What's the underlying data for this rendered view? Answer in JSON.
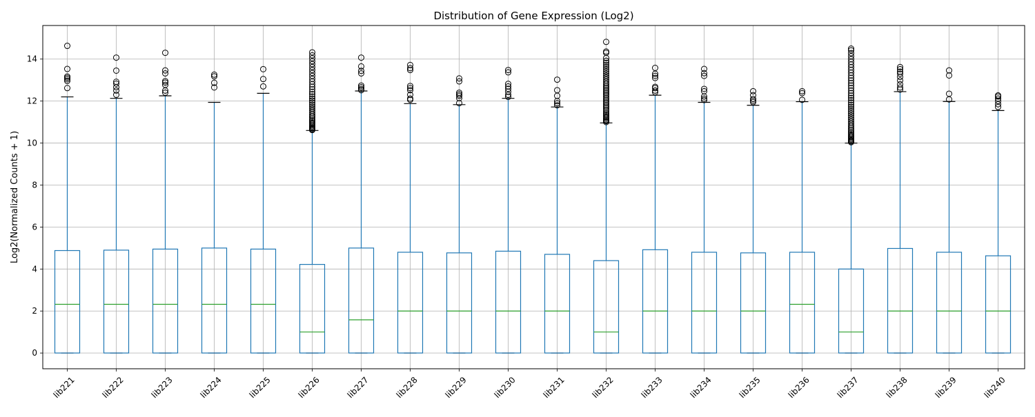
{
  "chart_data": {
    "type": "box",
    "title": "Distribution of Gene Expression (Log2)",
    "xlabel": "",
    "ylabel": "Log2(Normalized Counts + 1)",
    "ylim": [
      -0.75,
      15.6
    ],
    "yticks": [
      0,
      2,
      4,
      6,
      8,
      10,
      12,
      14
    ],
    "grid": true,
    "colors": {
      "box": "#1f77b4",
      "median": "#2ca02c",
      "whisker": "#1f77b4",
      "cap": "#000000",
      "outlier": "#000000",
      "grid": "#b0b0b0"
    },
    "categories": [
      "lib221",
      "lib222",
      "lib223",
      "lib224",
      "lib225",
      "lib226",
      "lib227",
      "lib228",
      "lib229",
      "lib230",
      "lib231",
      "lib232",
      "lib233",
      "lib234",
      "lib235",
      "lib236",
      "lib237",
      "lib238",
      "lib239",
      "lib240"
    ],
    "boxes": [
      {
        "label": "lib221",
        "whislo": 0,
        "q1": 0,
        "median": 2.32,
        "q3": 4.88,
        "whishi": 12.2,
        "fliers": [
          12.62,
          12.96,
          13.04,
          13.11,
          13.17,
          13.53,
          14.63
        ]
      },
      {
        "label": "lib222",
        "whislo": 0,
        "q1": 0,
        "median": 2.32,
        "q3": 4.9,
        "whishi": 12.13,
        "fliers": [
          12.3,
          12.5,
          12.66,
          12.83,
          12.92,
          13.45,
          14.07
        ]
      },
      {
        "label": "lib223",
        "whislo": 0,
        "q1": 0,
        "median": 2.32,
        "q3": 4.95,
        "whishi": 12.25,
        "fliers": [
          12.4,
          12.5,
          12.77,
          12.88,
          12.95,
          13.32,
          13.46,
          14.3
        ]
      },
      {
        "label": "lib224",
        "whislo": 0,
        "q1": 0,
        "median": 2.32,
        "q3": 5.0,
        "whishi": 11.94,
        "fliers": [
          12.65,
          12.87,
          13.18,
          13.26
        ]
      },
      {
        "label": "lib225",
        "whislo": 0,
        "q1": 0,
        "median": 2.32,
        "q3": 4.95,
        "whishi": 12.37,
        "fliers": [
          12.7,
          13.05,
          13.52
        ]
      },
      {
        "label": "lib226",
        "whislo": 0,
        "q1": 0,
        "median": 1.0,
        "q3": 4.22,
        "whishi": 10.6,
        "fliers": [
          10.62,
          10.66,
          10.7,
          10.75,
          10.8,
          10.86,
          10.92,
          10.98,
          11.05,
          11.12,
          11.2,
          11.28,
          11.36,
          11.45,
          11.54,
          11.63,
          11.72,
          11.82,
          11.92,
          12.02,
          12.12,
          12.22,
          12.33,
          12.44,
          12.56,
          12.68,
          12.8,
          12.93,
          13.06,
          13.2,
          13.34,
          13.48,
          13.62,
          13.76,
          13.9,
          14.04,
          14.18,
          14.32
        ]
      },
      {
        "label": "lib227",
        "whislo": 0,
        "q1": 0,
        "median": 1.58,
        "q3": 5.0,
        "whishi": 12.48,
        "fliers": [
          12.52,
          12.58,
          12.66,
          12.74,
          13.32,
          13.44,
          13.65,
          14.07
        ]
      },
      {
        "label": "lib228",
        "whislo": 0,
        "q1": 0,
        "median": 2.0,
        "q3": 4.8,
        "whishi": 11.88,
        "fliers": [
          12.06,
          12.12,
          12.3,
          12.52,
          12.62,
          12.72,
          13.48,
          13.57,
          13.72
        ]
      },
      {
        "label": "lib229",
        "whislo": 0,
        "q1": 0,
        "median": 2.0,
        "q3": 4.77,
        "whishi": 11.83,
        "fliers": [
          11.9,
          12.14,
          12.25,
          12.32,
          12.4,
          12.94,
          13.08
        ]
      },
      {
        "label": "lib230",
        "whislo": 0,
        "q1": 0,
        "median": 2.0,
        "q3": 4.85,
        "whishi": 12.13,
        "fliers": [
          12.2,
          12.3,
          12.45,
          12.58,
          12.7,
          12.82,
          13.37,
          13.48
        ]
      },
      {
        "label": "lib231",
        "whislo": 0,
        "q1": 0,
        "median": 2.0,
        "q3": 4.7,
        "whishi": 11.72,
        "fliers": [
          11.8,
          11.9,
          12.0,
          12.25,
          12.52,
          13.02
        ]
      },
      {
        "label": "lib232",
        "whislo": 0,
        "q1": 0,
        "median": 1.0,
        "q3": 4.4,
        "whishi": 10.96,
        "fliers": [
          11.0,
          11.05,
          11.1,
          11.16,
          11.22,
          11.28,
          11.35,
          11.42,
          11.5,
          11.58,
          11.66,
          11.74,
          11.82,
          11.9,
          11.98,
          12.06,
          12.14,
          12.22,
          12.3,
          12.38,
          12.46,
          12.54,
          12.62,
          12.7,
          12.78,
          12.86,
          12.95,
          13.04,
          13.13,
          13.22,
          13.32,
          13.42,
          13.52,
          13.62,
          13.72,
          13.82,
          13.92,
          14.05,
          14.3,
          14.36,
          14.82
        ]
      },
      {
        "label": "lib233",
        "whislo": 0,
        "q1": 0,
        "median": 2.0,
        "q3": 4.92,
        "whishi": 12.28,
        "fliers": [
          12.42,
          12.5,
          12.62,
          12.68,
          13.1,
          13.2,
          13.3,
          13.58
        ]
      },
      {
        "label": "lib234",
        "whislo": 0,
        "q1": 0,
        "median": 2.0,
        "q3": 4.8,
        "whishi": 11.94,
        "fliers": [
          12.05,
          12.12,
          12.22,
          12.47,
          12.58,
          13.2,
          13.33,
          13.53
        ]
      },
      {
        "label": "lib235",
        "whislo": 0,
        "q1": 0,
        "median": 2.0,
        "q3": 4.77,
        "whishi": 11.8,
        "fliers": [
          11.95,
          12.02,
          12.1,
          12.28,
          12.47
        ]
      },
      {
        "label": "lib236",
        "whislo": 0,
        "q1": 0,
        "median": 2.32,
        "q3": 4.8,
        "whishi": 11.97,
        "fliers": [
          12.06,
          12.38,
          12.47
        ]
      },
      {
        "label": "lib237",
        "whislo": 0,
        "q1": 0,
        "median": 1.0,
        "q3": 4.0,
        "whishi": 10.0,
        "fliers": [
          10.04,
          10.08,
          10.12,
          10.17,
          10.22,
          10.28,
          10.34,
          10.4,
          10.47,
          10.54,
          10.62,
          10.7,
          10.78,
          10.86,
          10.95,
          11.04,
          11.13,
          11.22,
          11.32,
          11.42,
          11.52,
          11.62,
          11.72,
          11.82,
          11.93,
          12.04,
          12.15,
          12.26,
          12.38,
          12.5,
          12.62,
          12.74,
          12.86,
          12.98,
          13.1,
          13.22,
          13.35,
          13.48,
          13.61,
          13.74,
          13.87,
          14.0,
          14.14,
          14.28,
          14.42,
          14.5
        ]
      },
      {
        "label": "lib238",
        "whislo": 0,
        "q1": 0,
        "median": 2.0,
        "q3": 4.98,
        "whishi": 12.45,
        "fliers": [
          12.55,
          12.65,
          12.8,
          12.98,
          13.15,
          13.3,
          13.4,
          13.52,
          13.62
        ]
      },
      {
        "label": "lib239",
        "whislo": 0,
        "q1": 0,
        "median": 2.0,
        "q3": 4.8,
        "whishi": 11.98,
        "fliers": [
          12.08,
          12.35,
          13.22,
          13.46
        ]
      },
      {
        "label": "lib240",
        "whislo": 0,
        "q1": 0,
        "median": 2.0,
        "q3": 4.63,
        "whishi": 11.55,
        "fliers": [
          11.72,
          11.85,
          12.0,
          12.12,
          12.22,
          12.27
        ]
      }
    ]
  }
}
